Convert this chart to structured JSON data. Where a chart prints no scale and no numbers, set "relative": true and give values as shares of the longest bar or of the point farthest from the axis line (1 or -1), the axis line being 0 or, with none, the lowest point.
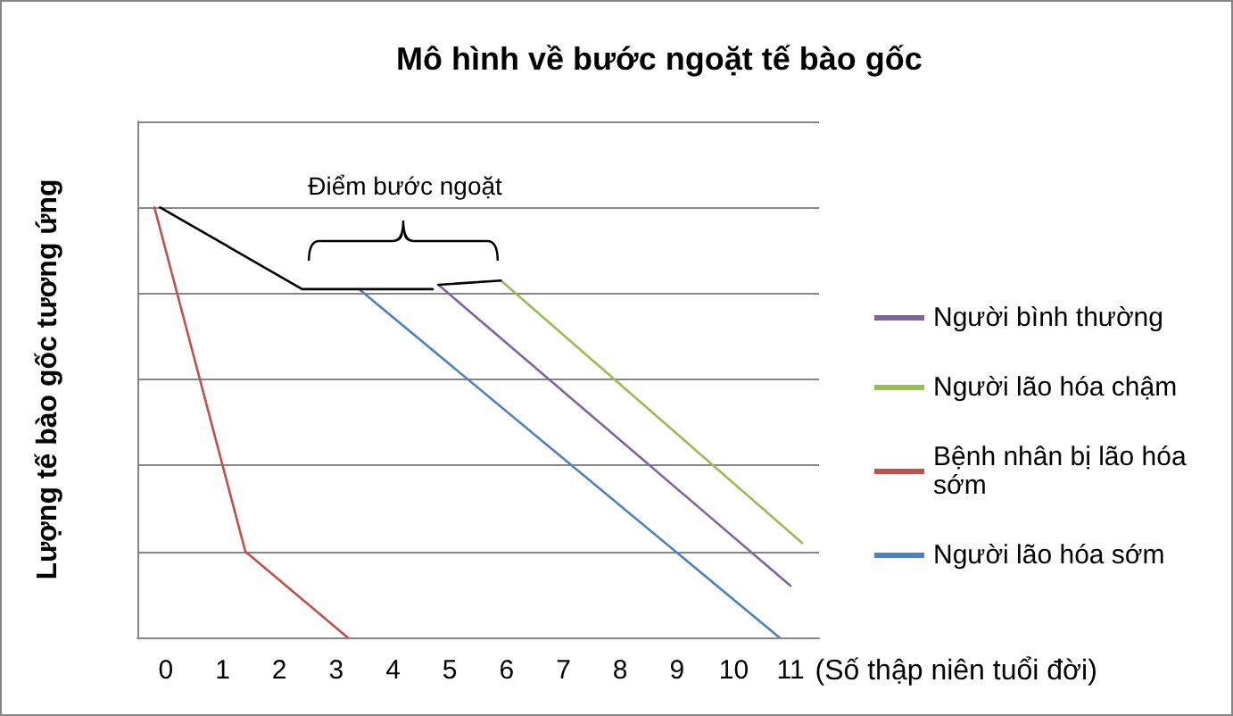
{
  "chart_data": {
    "type": "line",
    "title": "Mô hình về bước ngoặt tế bào gốc",
    "xlabel": "(Số thập niên tuổi đời)",
    "ylabel": "Lượng tế bào gốc tương ứng",
    "relative": true,
    "xlim": [
      -0.5,
      11.5
    ],
    "xticks": [
      0,
      1,
      2,
      3,
      4,
      5,
      6,
      7,
      8,
      9,
      10,
      11
    ],
    "grid": "y",
    "legend": "right",
    "annotations": [
      "Điểm bước ngoặt"
    ],
    "series": [
      {
        "name": "Người bình thường",
        "color": "#8064a2",
        "x": [
          4.8,
          11.0
        ],
        "values": [
          0.82,
          0.12
        ]
      },
      {
        "name": "Người lão hóa chậm",
        "color": "#9bbb59",
        "x": [
          5.9,
          11.2
        ],
        "values": [
          0.83,
          0.22
        ]
      },
      {
        "name": "Bệnh nhân bị lão hóa sớm",
        "color": "#c0504d",
        "x": [
          -0.2,
          1.4,
          3.2
        ],
        "values": [
          1,
          0.2,
          0
        ]
      },
      {
        "name": "Người lão hóa sớm",
        "color": "#4f81bd",
        "x": [
          3.4,
          10.8
        ],
        "values": [
          0.81,
          0
        ]
      },
      {
        "color": "#000000",
        "x": [
          -0.1,
          2.4,
          4.7
        ],
        "values": [
          1,
          0.81,
          0.81
        ]
      },
      {
        "color": "#000000",
        "x": [
          4.8,
          5.9
        ],
        "values": [
          0.82,
          0.83
        ]
      }
    ]
  }
}
